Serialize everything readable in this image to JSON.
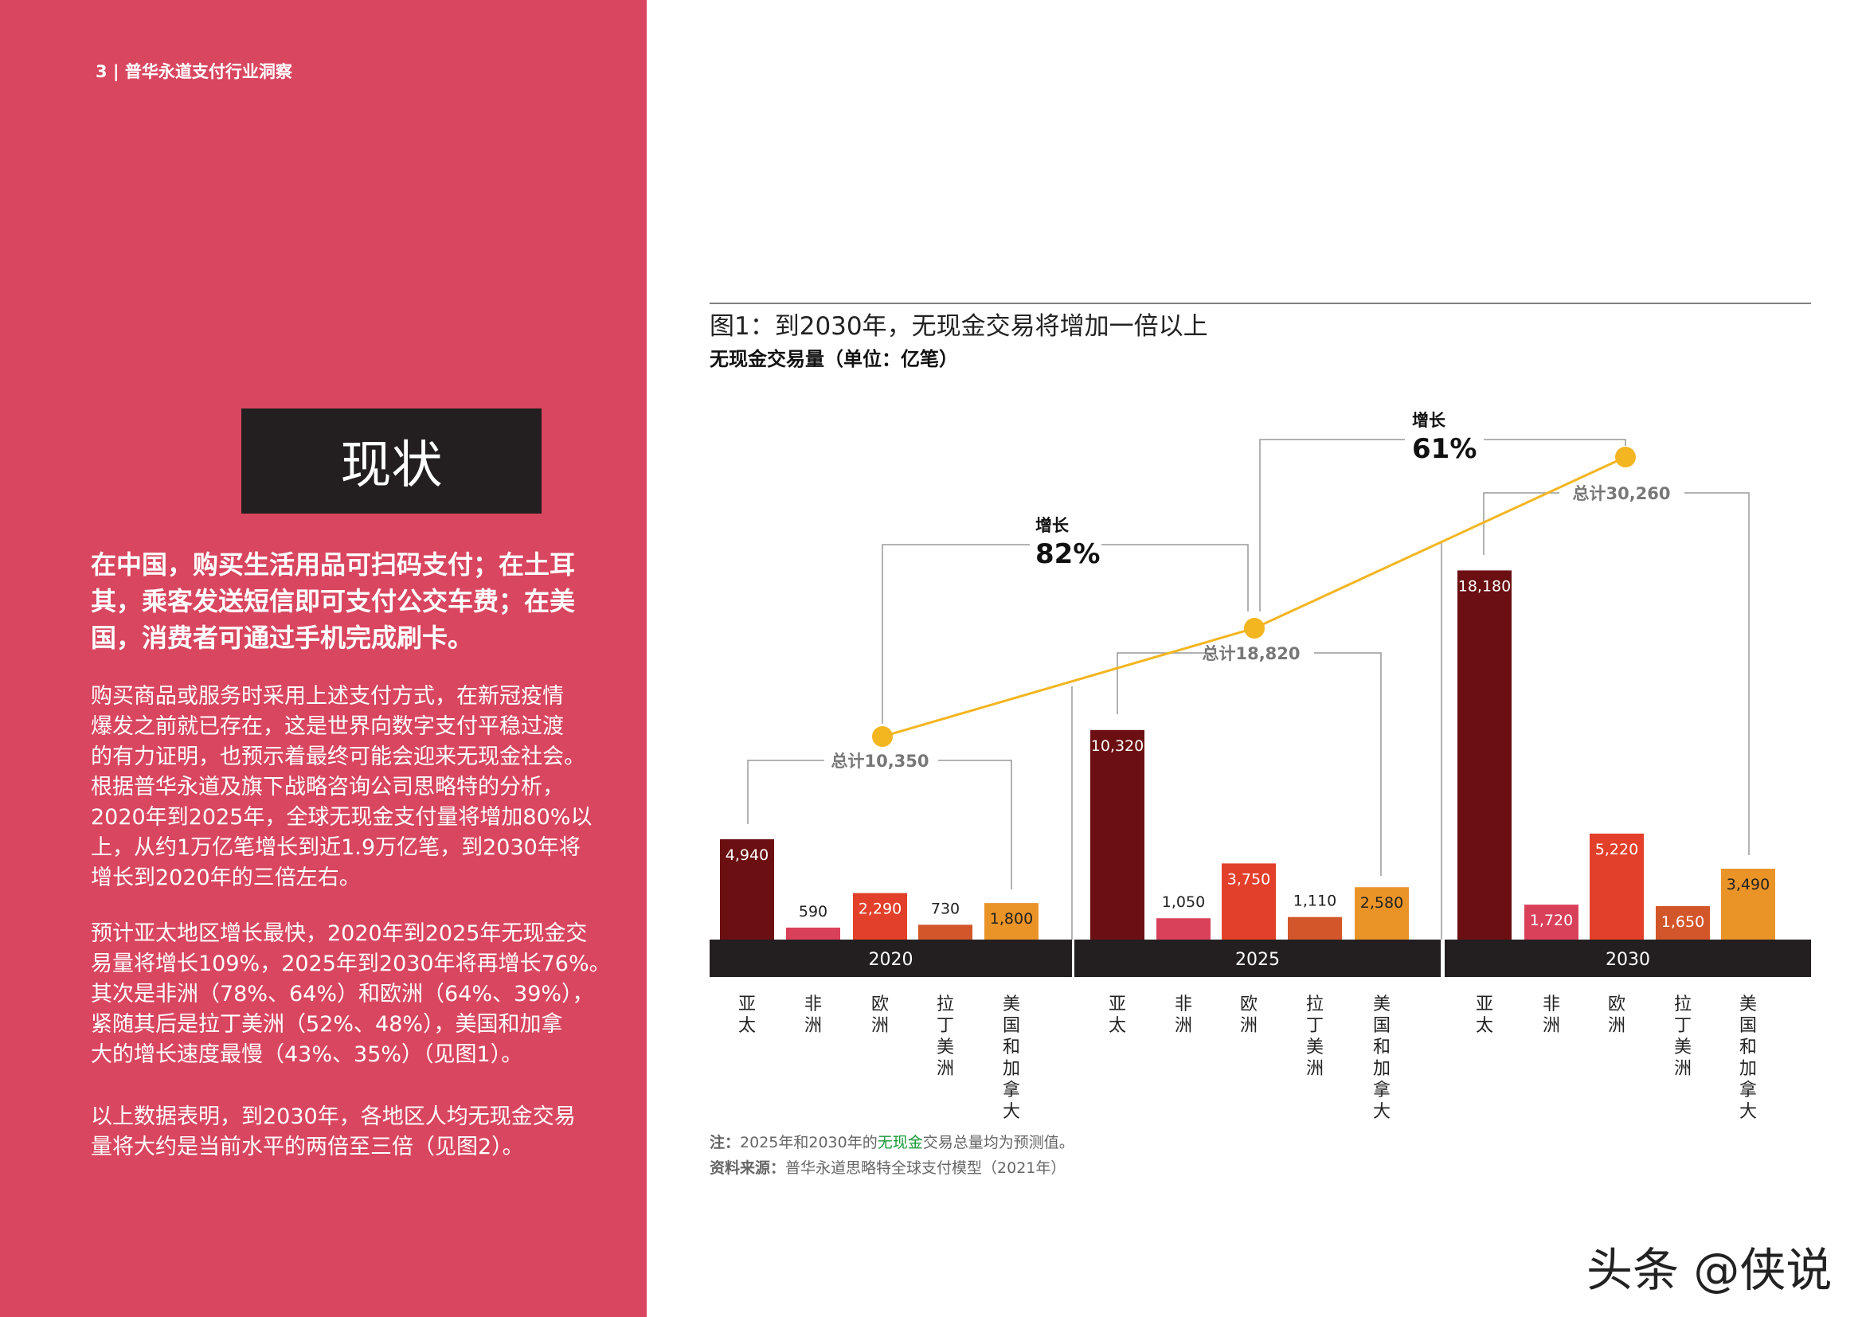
{
  "page": {
    "header": "3 | 普华永道支付行业洞察",
    "section_title": "现状",
    "lead_lines": [
      "在中国，购买生活用品可扫码支付；在土耳",
      "其，乘客发送短信即可支付公交车费；在美",
      "国，消费者可通过手机完成刷卡。"
    ],
    "para1_lines": [
      "购买商品或服务时采用上述支付方式，在新冠疫情",
      "爆发之前就已存在，这是世界向数字支付平稳过渡",
      "的有力证明，也预示着最终可能会迎来无现金社会。",
      "根据普华永道及旗下战略咨询公司思略特的分析，",
      "2020年到2025年，全球无现金支付量将增加80%以",
      "上，从约1万亿笔增长到近1.9万亿笔，到2030年将",
      "增长到2020年的三倍左右。"
    ],
    "para2_lines": [
      "预计亚太地区增长最快，2020年到2025年无现金交",
      "易量将增长109%，2025年到2030年将再增长76%。",
      "其次是非洲（78%、64%）和欧洲（64%、39%），",
      "紧随其后是拉丁美洲（52%、48%），美国和加拿",
      "大的增长速度最慢（43%、35%）（见图1）。"
    ],
    "para3_lines": [
      "以上数据表明，到2030年，各地区人均无现金交易",
      "量将大约是当前水平的两倍至三倍（见图2）。"
    ],
    "watermark": "头条 @侠说",
    "panel_color": "#d9465f"
  },
  "chart_data": {
    "type": "bar",
    "title": "图1：到2030年，无现金交易将增加一倍以上",
    "subtitle": "无现金交易量（单位：亿笔）",
    "categories": [
      "亚太",
      "非洲",
      "欧洲",
      "拉丁美洲",
      "美国和加拿大"
    ],
    "groups": [
      "2020",
      "2025",
      "2030"
    ],
    "series_colors": [
      "#6b0f12",
      "#d9415a",
      "#e2402a",
      "#d2562a",
      "#ea9428"
    ],
    "values": [
      [
        4940,
        590,
        2290,
        730,
        1800
      ],
      [
        10320,
        1050,
        3750,
        1110,
        2580
      ],
      [
        18180,
        1720,
        5220,
        1650,
        3490
      ]
    ],
    "value_labels": [
      [
        "4,940",
        "590",
        "2,290",
        "730",
        "1,800"
      ],
      [
        "10,320",
        "1,050",
        "3,750",
        "1,110",
        "2,580"
      ],
      [
        "18,180",
        "1,720",
        "5,220",
        "1,650",
        "3,490"
      ]
    ],
    "totals": {
      "values": [
        10350,
        18820,
        30260
      ],
      "labels": [
        "总计10,350",
        "总计18,820",
        "总计30,260"
      ]
    },
    "total_line_color": "#f3b520",
    "growth": [
      {
        "label": "增长",
        "value": "82%"
      },
      {
        "label": "增长",
        "value": "61%"
      }
    ],
    "note_prefix": "注：",
    "note_a": "2025年和2030年的",
    "note_highlight": "无现金",
    "note_b": "交易总量均为预测值。",
    "source_prefix": "资料来源：",
    "source": "普华永道思略特全球支付模型（2021年）"
  }
}
